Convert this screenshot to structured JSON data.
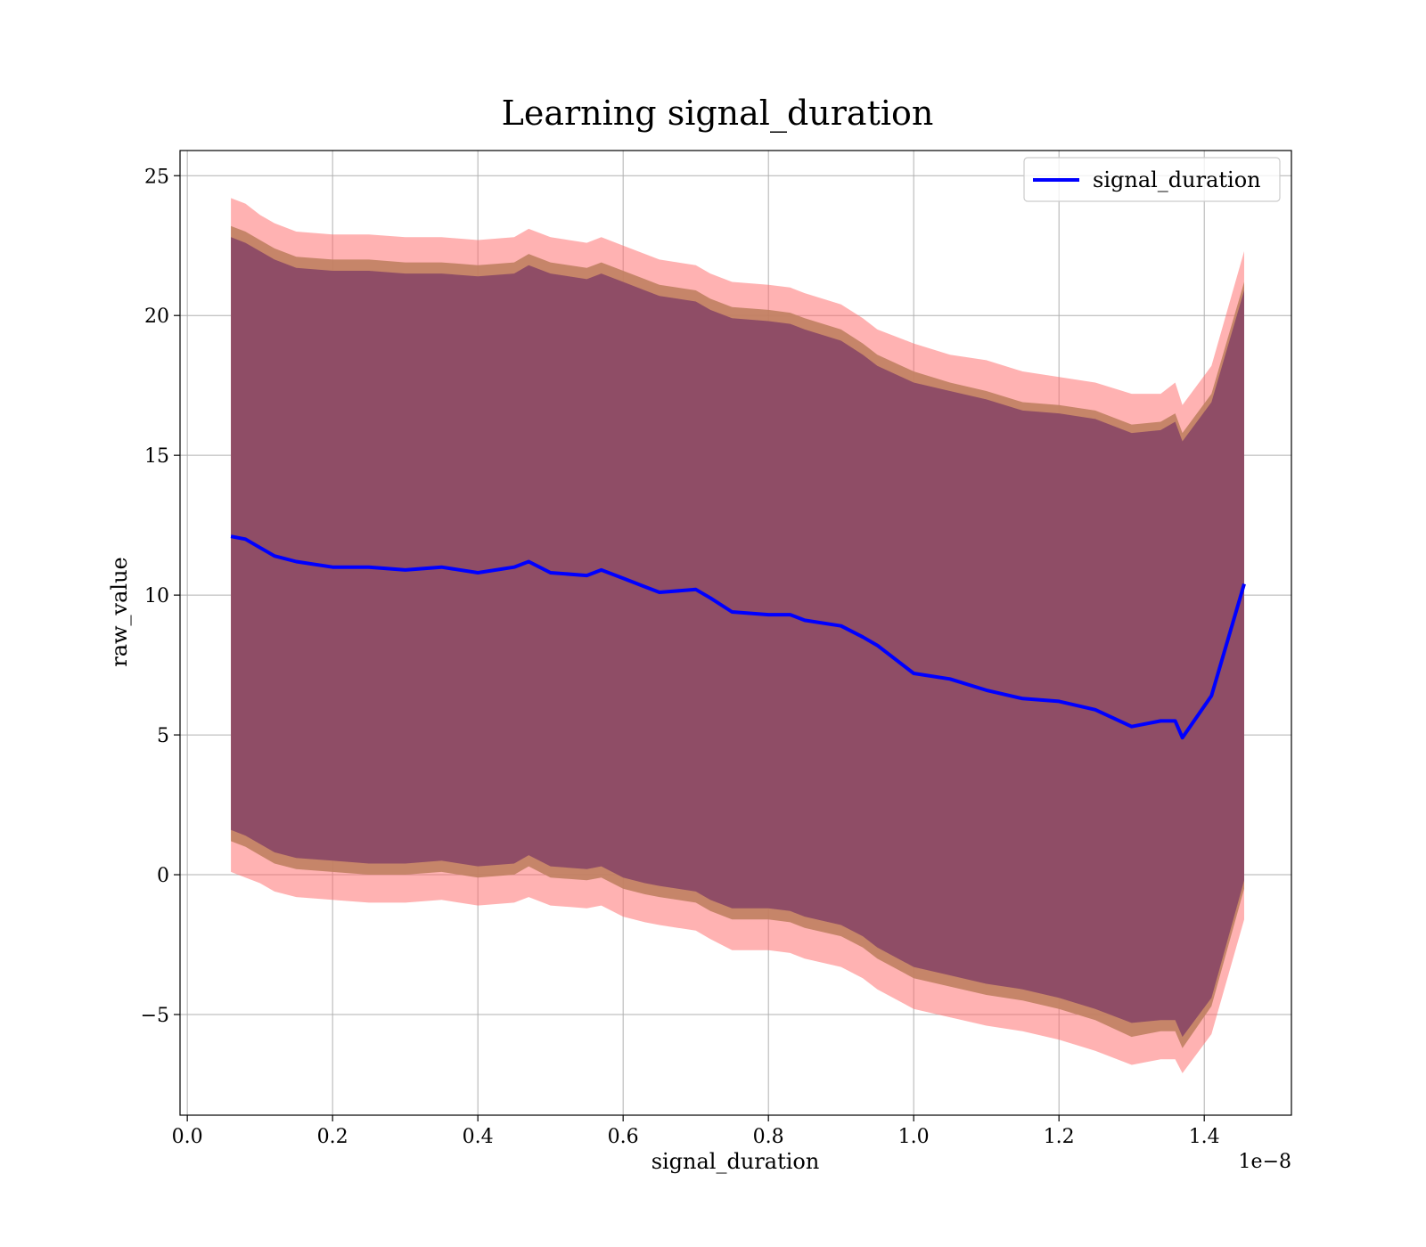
{
  "chart_data": {
    "type": "line",
    "title": "Learning signal_duration",
    "xlabel": "signal_duration",
    "ylabel": "raw_value",
    "x_offset_label": "1e−8",
    "x_scale_factor": 1e-08,
    "xlim": [
      -0.01,
      1.52
    ],
    "ylim": [
      -8.6,
      25.9
    ],
    "x_ticks": [
      0.0,
      0.2,
      0.4,
      0.6,
      0.8,
      1.0,
      1.2,
      1.4
    ],
    "x_tick_labels": [
      "0.0",
      "0.2",
      "0.4",
      "0.6",
      "0.8",
      "1.0",
      "1.2",
      "1.4"
    ],
    "y_ticks": [
      -5,
      0,
      5,
      10,
      15,
      20,
      25
    ],
    "y_tick_labels": [
      "−5",
      "0",
      "5",
      "10",
      "15",
      "20",
      "25"
    ],
    "grid": true,
    "legend_position": "top-right",
    "colors": {
      "line": "#0000ff",
      "band_outer": "#ff6666",
      "band_middle": "#c08060",
      "band_inner": "#8c4a66",
      "grid": "#b0b0b0"
    },
    "series": [
      {
        "name": "signal_duration",
        "x": [
          0.06,
          0.08,
          0.1,
          0.12,
          0.15,
          0.2,
          0.25,
          0.3,
          0.35,
          0.4,
          0.45,
          0.47,
          0.5,
          0.55,
          0.57,
          0.6,
          0.63,
          0.65,
          0.7,
          0.72,
          0.75,
          0.8,
          0.83,
          0.85,
          0.9,
          0.93,
          0.95,
          1.0,
          1.05,
          1.1,
          1.15,
          1.2,
          1.25,
          1.3,
          1.34,
          1.36,
          1.37,
          1.41,
          1.455
        ],
        "y": [
          12.1,
          12.0,
          11.7,
          11.4,
          11.2,
          11.0,
          11.0,
          10.9,
          11.0,
          10.8,
          11.0,
          11.2,
          10.8,
          10.7,
          10.9,
          10.6,
          10.3,
          10.1,
          10.2,
          9.9,
          9.4,
          9.3,
          9.3,
          9.1,
          8.9,
          8.5,
          8.2,
          7.2,
          7.0,
          6.6,
          6.3,
          6.2,
          5.9,
          5.3,
          5.5,
          5.5,
          4.9,
          6.4,
          10.4
        ]
      }
    ],
    "bands": [
      {
        "label": "outer",
        "upper": [
          24.2,
          24.0,
          23.6,
          23.3,
          23.0,
          22.9,
          22.9,
          22.8,
          22.8,
          22.7,
          22.8,
          23.1,
          22.8,
          22.6,
          22.8,
          22.5,
          22.2,
          22.0,
          21.8,
          21.5,
          21.2,
          21.1,
          21.0,
          20.8,
          20.4,
          19.9,
          19.5,
          19.0,
          18.6,
          18.4,
          18.0,
          17.8,
          17.6,
          17.2,
          17.2,
          17.6,
          16.8,
          18.2,
          22.3
        ],
        "lower": [
          0.1,
          -0.1,
          -0.3,
          -0.6,
          -0.8,
          -0.9,
          -1.0,
          -1.0,
          -0.9,
          -1.1,
          -1.0,
          -0.8,
          -1.1,
          -1.2,
          -1.1,
          -1.5,
          -1.7,
          -1.8,
          -2.0,
          -2.3,
          -2.7,
          -2.7,
          -2.8,
          -3.0,
          -3.3,
          -3.7,
          -4.1,
          -4.8,
          -5.1,
          -5.4,
          -5.6,
          -5.9,
          -6.3,
          -6.8,
          -6.6,
          -6.6,
          -7.1,
          -5.7,
          -1.6
        ]
      },
      {
        "label": "middle",
        "upper": [
          23.2,
          23.0,
          22.7,
          22.4,
          22.1,
          22.0,
          22.0,
          21.9,
          21.9,
          21.8,
          21.9,
          22.2,
          21.9,
          21.7,
          21.9,
          21.6,
          21.3,
          21.1,
          20.9,
          20.6,
          20.3,
          20.2,
          20.1,
          19.9,
          19.5,
          19.0,
          18.6,
          18.0,
          17.6,
          17.3,
          16.9,
          16.8,
          16.6,
          16.1,
          16.2,
          16.5,
          15.8,
          17.2,
          21.2
        ],
        "lower": [
          1.2,
          1.0,
          0.7,
          0.4,
          0.2,
          0.1,
          0.0,
          0.0,
          0.1,
          -0.1,
          0.0,
          0.3,
          -0.1,
          -0.2,
          -0.1,
          -0.5,
          -0.7,
          -0.8,
          -1.0,
          -1.3,
          -1.6,
          -1.6,
          -1.7,
          -1.9,
          -2.2,
          -2.6,
          -3.0,
          -3.7,
          -4.0,
          -4.3,
          -4.5,
          -4.8,
          -5.2,
          -5.8,
          -5.6,
          -5.6,
          -6.2,
          -4.7,
          -0.5
        ]
      },
      {
        "label": "inner",
        "upper": [
          22.8,
          22.6,
          22.3,
          22.0,
          21.7,
          21.6,
          21.6,
          21.5,
          21.5,
          21.4,
          21.5,
          21.8,
          21.5,
          21.3,
          21.5,
          21.2,
          20.9,
          20.7,
          20.5,
          20.2,
          19.9,
          19.8,
          19.7,
          19.5,
          19.1,
          18.6,
          18.2,
          17.6,
          17.3,
          17.0,
          16.6,
          16.5,
          16.3,
          15.8,
          15.9,
          16.2,
          15.5,
          16.9,
          20.9
        ],
        "lower": [
          1.6,
          1.4,
          1.1,
          0.8,
          0.6,
          0.5,
          0.4,
          0.4,
          0.5,
          0.3,
          0.4,
          0.7,
          0.3,
          0.2,
          0.3,
          -0.1,
          -0.3,
          -0.4,
          -0.6,
          -0.9,
          -1.2,
          -1.2,
          -1.3,
          -1.5,
          -1.8,
          -2.2,
          -2.6,
          -3.3,
          -3.6,
          -3.9,
          -4.1,
          -4.4,
          -4.8,
          -5.3,
          -5.2,
          -5.2,
          -5.8,
          -4.4,
          -0.2
        ]
      }
    ]
  }
}
